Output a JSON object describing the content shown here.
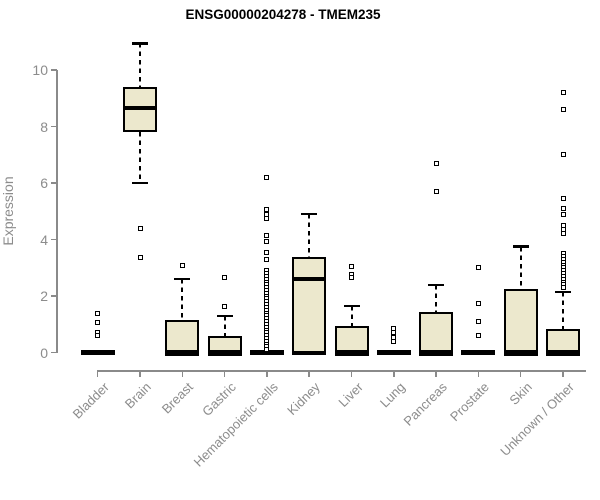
{
  "title": "ENSG00000204278 - TMEM235",
  "chart_data": {
    "type": "boxplot",
    "title": "ENSG00000204278 - TMEM235",
    "xlabel": "",
    "ylabel": "Expression",
    "ylim": [
      0,
      10
    ],
    "yticks": [
      0,
      2,
      4,
      6,
      8,
      10
    ],
    "grid": false,
    "legend": "none",
    "categories": [
      "Bladder",
      "Brain",
      "Breast",
      "Gastric",
      "Hematopoietic cells",
      "Kidney",
      "Liver",
      "Lung",
      "Pancreas",
      "Prostate",
      "Skin",
      "Unknown / Other"
    ],
    "series": [
      {
        "name": "Bladder",
        "whisker_low": 0,
        "q1": 0,
        "median": 0,
        "q3": 0,
        "whisker_high": 0,
        "outliers": [
          1.4,
          1.05,
          0.7,
          0.6
        ]
      },
      {
        "name": "Brain",
        "whisker_low": 6.0,
        "q1": 7.8,
        "median": 8.65,
        "q3": 9.4,
        "whisker_high": 10.95,
        "outliers": [
          4.4,
          3.35
        ]
      },
      {
        "name": "Breast",
        "whisker_low": 0,
        "q1": 0,
        "median": 0,
        "q3": 1.15,
        "whisker_high": 2.6,
        "outliers": [
          3.1
        ]
      },
      {
        "name": "Gastric",
        "whisker_low": 0,
        "q1": 0,
        "median": 0,
        "q3": 0.6,
        "whisker_high": 1.3,
        "outliers": [
          2.65,
          1.65
        ]
      },
      {
        "name": "Hematopoietic cells",
        "whisker_low": 0,
        "q1": 0,
        "median": 0,
        "q3": 0,
        "whisker_high": 0,
        "outliers": [
          6.2,
          5.05,
          4.9,
          4.75,
          4.15,
          3.95,
          3.55,
          3.3,
          2.9,
          2.8,
          2.7,
          2.6,
          2.5,
          2.4,
          2.3,
          2.2,
          2.1,
          2.0,
          1.9,
          1.8,
          1.7,
          1.6,
          1.5,
          1.4,
          1.3,
          1.2,
          1.1,
          1.0,
          0.9,
          0.8,
          0.7,
          0.6,
          0.5,
          0.4,
          0.3,
          0.2,
          0.1
        ]
      },
      {
        "name": "Kidney",
        "whisker_low": 0,
        "q1": 0,
        "median": 2.6,
        "q3": 3.4,
        "whisker_high": 4.9,
        "outliers": []
      },
      {
        "name": "Liver",
        "whisker_low": 0,
        "q1": 0,
        "median": 0,
        "q3": 0.95,
        "whisker_high": 1.65,
        "outliers": [
          3.05,
          2.75,
          2.65
        ]
      },
      {
        "name": "Lung",
        "whisker_low": 0,
        "q1": 0,
        "median": 0,
        "q3": 0,
        "whisker_high": 0,
        "outliers": [
          0.85,
          0.7,
          0.55,
          0.4
        ]
      },
      {
        "name": "Pancreas",
        "whisker_low": 0,
        "q1": 0,
        "median": 0,
        "q3": 1.45,
        "whisker_high": 2.4,
        "outliers": [
          6.7,
          5.7
        ]
      },
      {
        "name": "Prostate",
        "whisker_low": 0,
        "q1": 0,
        "median": 0,
        "q3": 0,
        "whisker_high": 0,
        "outliers": [
          3.0,
          1.75,
          1.1,
          0.6
        ]
      },
      {
        "name": "Skin",
        "whisker_low": 0,
        "q1": 0,
        "median": 0,
        "q3": 2.25,
        "whisker_high": 3.75,
        "outliers": []
      },
      {
        "name": "Unknown / Other",
        "whisker_low": 0,
        "q1": 0,
        "median": 0,
        "q3": 0.85,
        "whisker_high": 2.15,
        "outliers": [
          9.2,
          8.6,
          7.0,
          5.45,
          5.1,
          4.9,
          4.5,
          4.35,
          4.2,
          3.5,
          3.4,
          3.3,
          3.2,
          3.1,
          3.0,
          2.9,
          2.8,
          2.7,
          2.6,
          2.5,
          2.4,
          2.3
        ]
      }
    ],
    "colors": {
      "box_fill": "#ece8cd",
      "box_border": "#000000",
      "whisker": "#000000",
      "outlier": "#000000",
      "axis_line": "#8a8a8a",
      "axis_text": "#8c8c8c",
      "title_text": "#000000",
      "background": "#ffffff"
    }
  }
}
